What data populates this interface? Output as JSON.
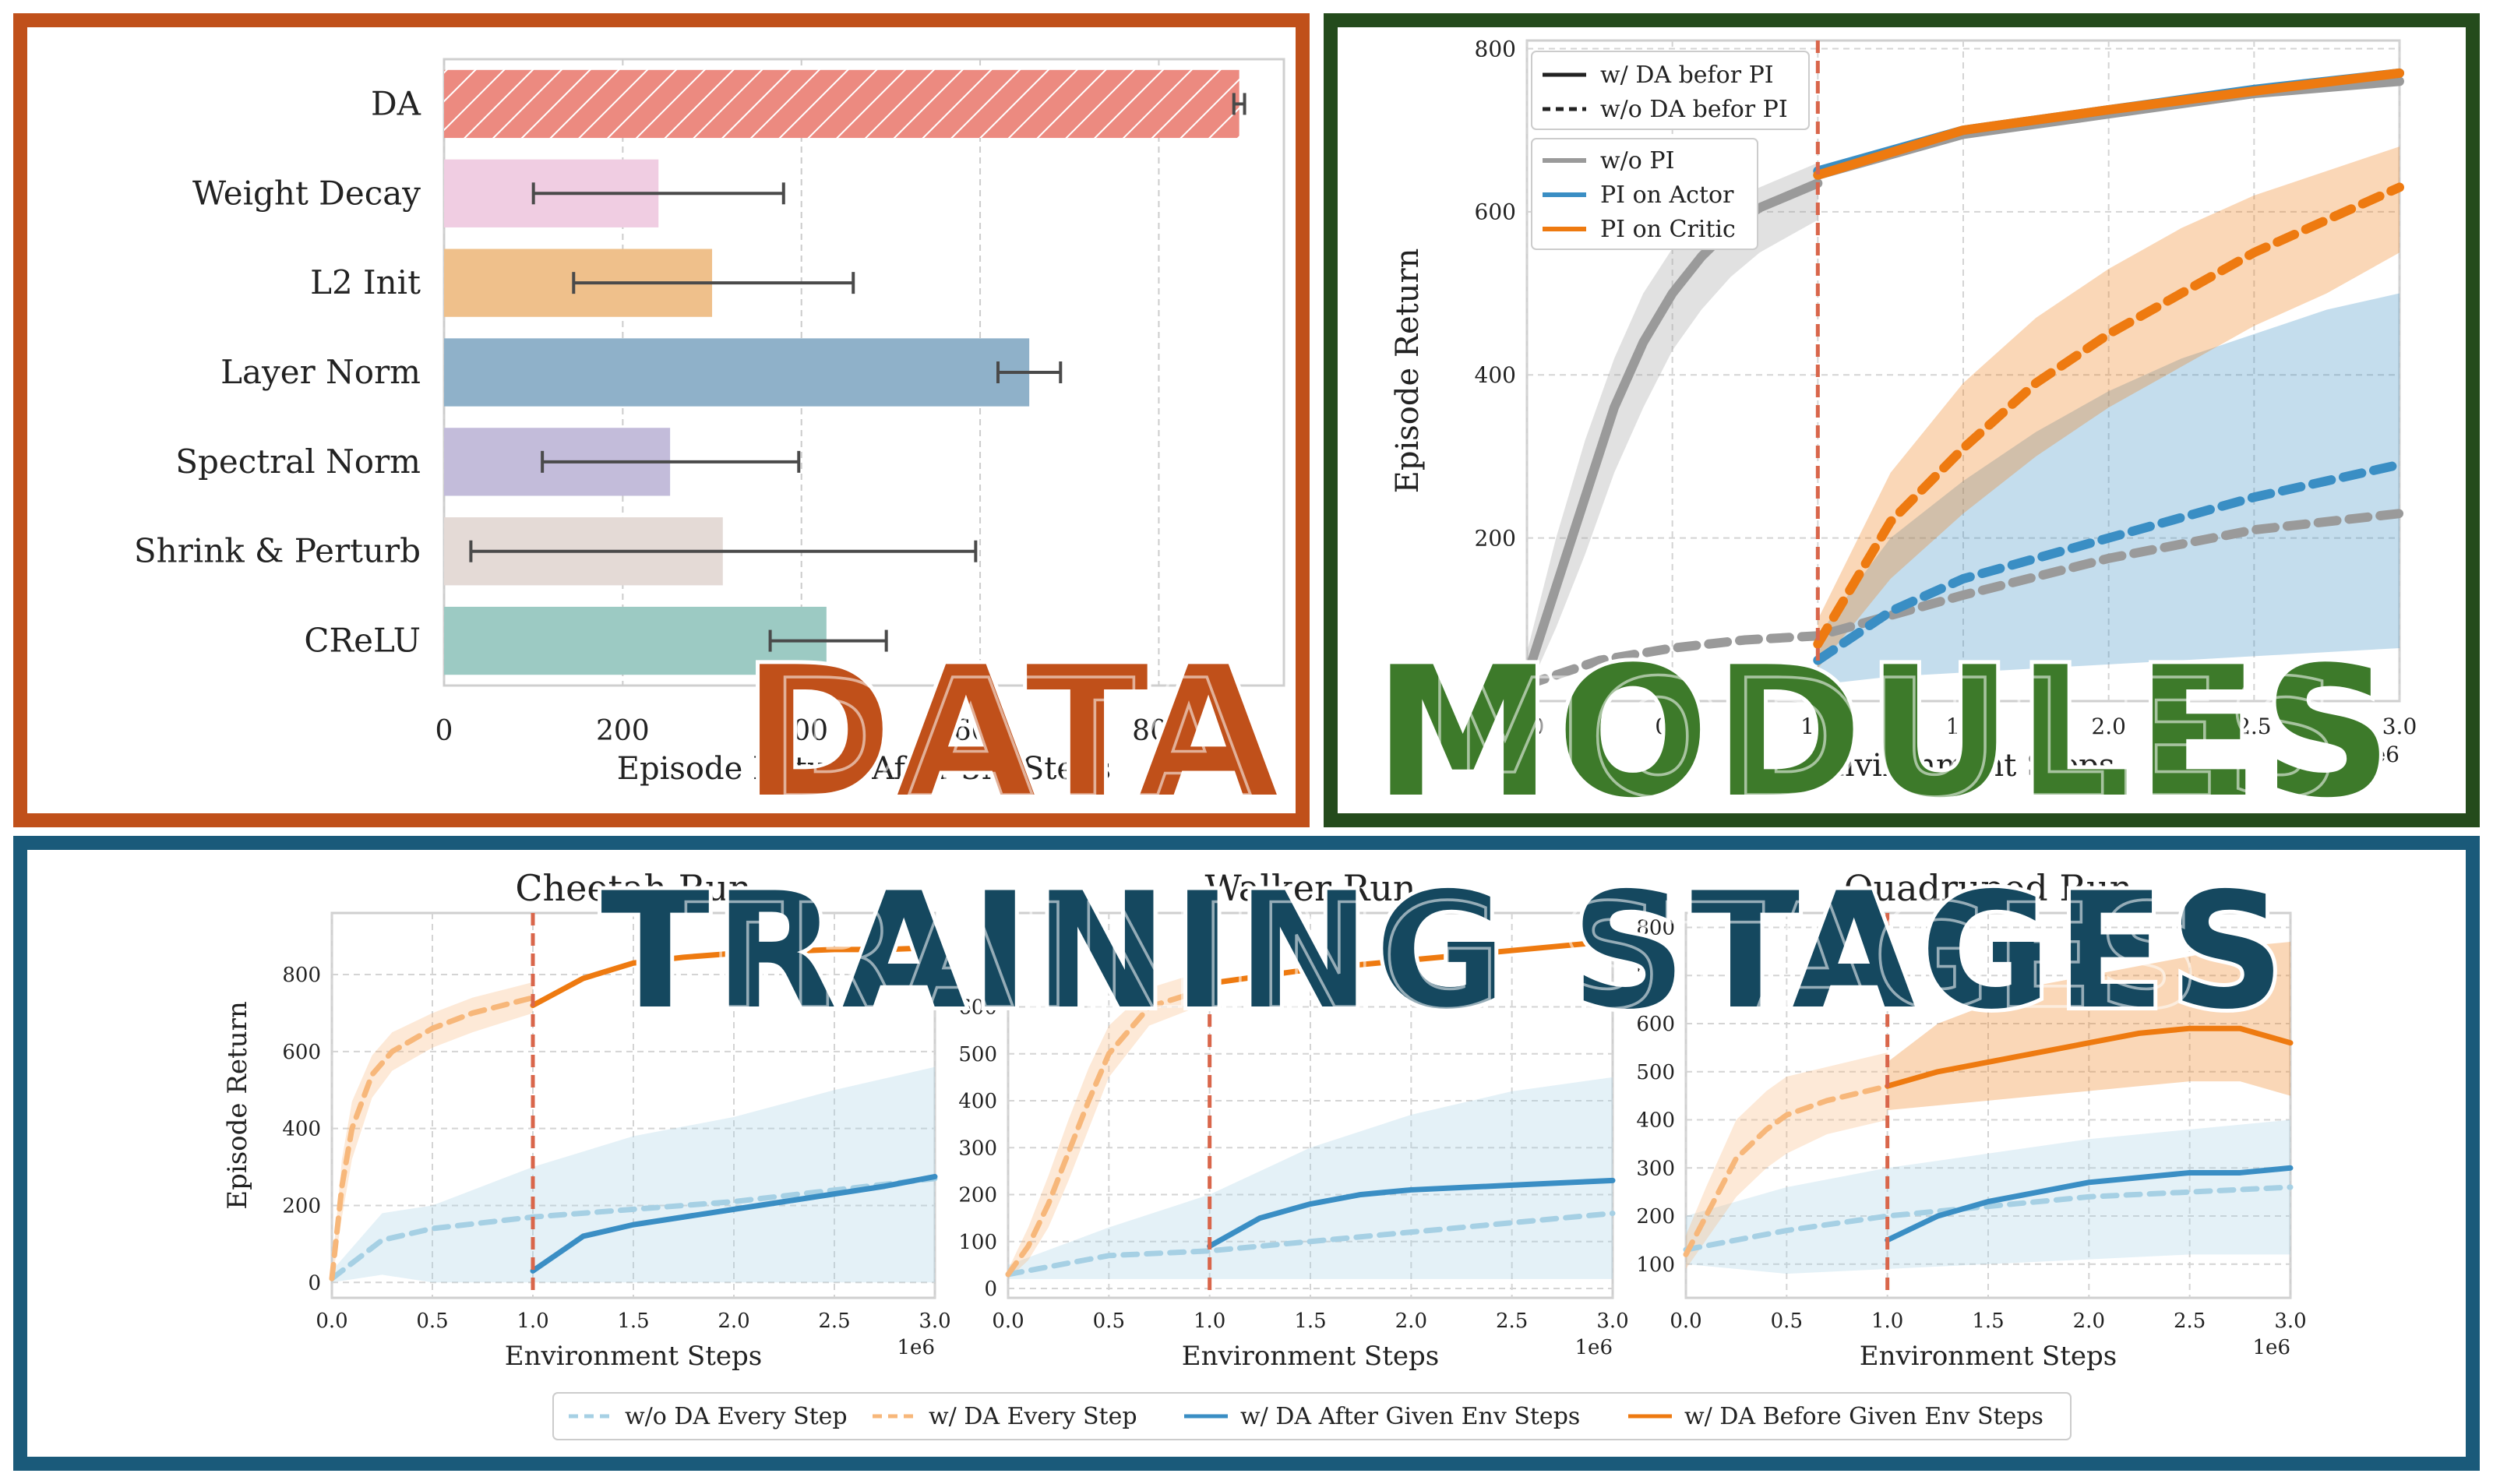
{
  "colors": {
    "data_frame": "#c0501a",
    "modules_frame": "#244b1c",
    "stages_frame": "#1a5a7a",
    "data_title": "#c0501a",
    "modules_title": "#3d7a2a",
    "stages_title": "#15485f",
    "orange": "#ee7a10",
    "light_orange": "#f7b77a",
    "blue": "#3a8ec4",
    "light_blue": "#a6d0e4",
    "gray": "#9a9a9a",
    "dashed_red": "#d9664b"
  },
  "section_titles": {
    "data": "DATA",
    "modules": "MODULES",
    "stages": "TRAINING STAGES"
  },
  "chart_data": [
    {
      "type": "bar",
      "orientation": "horizontal",
      "categories": [
        "DA",
        "Weight Decay",
        "L2 Init",
        "Layer Norm",
        "Spectral Norm",
        "Shrink & Perturb",
        "CReLU"
      ],
      "values": [
        890,
        240,
        300,
        655,
        253,
        312,
        428
      ],
      "error_low": [
        884,
        100,
        145,
        620,
        110,
        30,
        365
      ],
      "error_high": [
        896,
        380,
        458,
        690,
        397,
        595,
        495
      ],
      "bar_colors": [
        "#ec8a80",
        "#f0cde2",
        "#efc08b",
        "#8fb1c9",
        "#c3bcda",
        "#e4dad6",
        "#9ccac3"
      ],
      "xlabel": "Episode Return After 3M Steps",
      "xticks": [
        "0",
        "200",
        "400",
        "600",
        "800"
      ],
      "xlim": [
        0,
        940
      ],
      "grid": true
    },
    {
      "type": "line",
      "xlabel": "Environment Steps",
      "ylabel": "Episode Return",
      "xticks": [
        "0.0",
        "0.5",
        "1.0",
        "1.5",
        "2.0",
        "2.5",
        "3.0"
      ],
      "yticks": [
        "200",
        "400",
        "600",
        "800"
      ],
      "xlim": [
        0,
        3.0
      ],
      "ylim": [
        0,
        810
      ],
      "x_scale_note": "1e6",
      "vline_x": 1.0,
      "legend_linestyle": [
        {
          "name": "w/ DA befor PI",
          "style": "solid"
        },
        {
          "name": "w/o DA befor PI",
          "style": "dashed"
        }
      ],
      "legend_color": [
        {
          "name": "w/o PI",
          "color": "#9a9a9a"
        },
        {
          "name": "PI on Actor",
          "color": "#3a8ec4"
        },
        {
          "name": "PI on Critic",
          "color": "#ee7a10"
        }
      ],
      "series": [
        {
          "name": "w/o PI",
          "style": "solid",
          "color": "#9a9a9a",
          "x": [
            0.0,
            0.1,
            0.2,
            0.3,
            0.4,
            0.5,
            0.6,
            0.7,
            0.8,
            0.9,
            1.0
          ],
          "y": [
            30,
            140,
            250,
            360,
            440,
            500,
            545,
            580,
            605,
            620,
            635
          ],
          "band_low": [
            10,
            90,
            180,
            280,
            360,
            430,
            480,
            520,
            550,
            570,
            590
          ],
          "band_high": [
            60,
            200,
            320,
            420,
            500,
            555,
            590,
            615,
            630,
            645,
            660
          ]
        },
        {
          "name": "w/ DA befor PI (w/o PI)",
          "style": "solid",
          "color": "#9a9a9a",
          "x": [
            1.0,
            1.5,
            2.0,
            2.5,
            3.0
          ],
          "y": [
            645,
            695,
            720,
            745,
            760
          ]
        },
        {
          "name": "w/ DA befor PI (PI on Actor)",
          "style": "solid",
          "color": "#3a8ec4",
          "x": [
            1.0,
            1.5,
            2.0,
            2.5,
            3.0
          ],
          "y": [
            650,
            700,
            725,
            750,
            770
          ]
        },
        {
          "name": "w/ DA befor PI (PI on Critic)",
          "style": "solid",
          "color": "#ee7a10",
          "x": [
            1.0,
            1.5,
            2.0,
            2.5,
            3.0
          ],
          "y": [
            645,
            700,
            725,
            748,
            770
          ]
        },
        {
          "name": "w/o DA befor PI (w/o PI)",
          "style": "dashed",
          "color": "#9a9a9a",
          "x": [
            0.0,
            0.25,
            0.5,
            0.75,
            1.0,
            1.5,
            2.0,
            2.5,
            3.0
          ],
          "y": [
            20,
            50,
            65,
            75,
            80,
            130,
            175,
            210,
            230
          ]
        },
        {
          "name": "w/o DA befor PI (PI on Actor)",
          "style": "dashed",
          "color": "#3a8ec4",
          "x": [
            1.0,
            1.25,
            1.5,
            1.75,
            2.0,
            2.25,
            2.5,
            2.75,
            3.0
          ],
          "y": [
            50,
            110,
            150,
            175,
            200,
            225,
            250,
            270,
            290
          ],
          "band_low": [
            20,
            30,
            35,
            40,
            45,
            50,
            55,
            60,
            65
          ],
          "band_high": [
            80,
            200,
            270,
            330,
            380,
            420,
            450,
            480,
            500
          ]
        },
        {
          "name": "w/o DA befor PI (PI on Critic)",
          "style": "dashed",
          "color": "#ee7a10",
          "x": [
            1.0,
            1.25,
            1.5,
            1.75,
            2.0,
            2.25,
            2.5,
            2.75,
            3.0
          ],
          "y": [
            70,
            220,
            310,
            390,
            450,
            500,
            550,
            590,
            630
          ],
          "band_low": [
            40,
            150,
            230,
            300,
            360,
            410,
            460,
            500,
            550
          ],
          "band_high": [
            100,
            280,
            390,
            470,
            530,
            580,
            620,
            650,
            680
          ]
        }
      ]
    },
    {
      "type": "line",
      "title": "Cheetah Run",
      "xlabel": "Environment Steps",
      "ylabel": "Episode Return",
      "xticks": [
        "0.0",
        "0.5",
        "1.0",
        "1.5",
        "2.0",
        "2.5",
        "3.0"
      ],
      "yticks": [
        "0",
        "200",
        "400",
        "600",
        "800"
      ],
      "xlim": [
        0,
        3.0
      ],
      "ylim": [
        -40,
        960
      ],
      "x_scale_note": "1e6",
      "vline_x": 1.0,
      "series": [
        {
          "name": "w/o DA Every Step",
          "x": [
            0.0,
            0.25,
            0.5,
            1.0,
            1.5,
            2.0,
            2.5,
            3.0
          ],
          "y": [
            10,
            110,
            140,
            170,
            190,
            210,
            240,
            270
          ],
          "band_low": [
            0,
            20,
            0,
            0,
            0,
            0,
            0,
            0
          ],
          "band_high": [
            30,
            180,
            200,
            300,
            380,
            430,
            500,
            560
          ]
        },
        {
          "name": "w/ DA Every Step",
          "x": [
            0.0,
            0.05,
            0.1,
            0.2,
            0.3,
            0.5,
            0.7,
            1.0
          ],
          "y": [
            10,
            250,
            400,
            540,
            600,
            660,
            700,
            740
          ],
          "band_low": [
            0,
            170,
            320,
            480,
            550,
            610,
            650,
            700
          ],
          "band_high": [
            30,
            320,
            470,
            590,
            650,
            700,
            740,
            780
          ]
        },
        {
          "name": "w/ DA After Given Env Steps",
          "x": [
            1.0,
            1.25,
            1.5,
            1.75,
            2.0,
            2.25,
            2.5,
            2.75,
            3.0
          ],
          "y": [
            30,
            120,
            150,
            170,
            190,
            210,
            230,
            250,
            275
          ]
        },
        {
          "name": "w/ DA Before Given Env Steps",
          "x": [
            1.0,
            1.25,
            1.5,
            1.75,
            2.0,
            2.25,
            2.5,
            2.75,
            3.0
          ],
          "y": [
            720,
            790,
            830,
            845,
            855,
            860,
            865,
            865,
            870
          ]
        }
      ]
    },
    {
      "type": "line",
      "title": "Walker Run",
      "xlabel": "Environment Steps",
      "xticks": [
        "0.0",
        "0.5",
        "1.0",
        "1.5",
        "2.0",
        "2.5",
        "3.0"
      ],
      "yticks": [
        "0",
        "100",
        "200",
        "300",
        "400",
        "500",
        "600"
      ],
      "xlim": [
        0,
        3.0
      ],
      "ylim": [
        -20,
        800
      ],
      "x_scale_note": "1e6",
      "vline_x": 1.0,
      "series": [
        {
          "name": "w/o DA Every Step",
          "x": [
            0.0,
            0.5,
            1.0,
            1.5,
            2.0,
            2.5,
            3.0
          ],
          "y": [
            30,
            70,
            80,
            100,
            120,
            140,
            160
          ],
          "band_low": [
            20,
            20,
            20,
            20,
            20,
            20,
            20
          ],
          "band_high": [
            50,
            130,
            200,
            300,
            370,
            420,
            450
          ]
        },
        {
          "name": "w/ DA Every Step",
          "x": [
            0.0,
            0.1,
            0.2,
            0.3,
            0.4,
            0.5,
            0.7,
            1.0
          ],
          "y": [
            30,
            90,
            180,
            290,
            400,
            500,
            600,
            640
          ],
          "band_low": [
            20,
            60,
            130,
            230,
            340,
            450,
            560,
            610
          ],
          "band_high": [
            40,
            130,
            240,
            360,
            470,
            560,
            640,
            680
          ]
        },
        {
          "name": "w/ DA After Given Env Steps",
          "x": [
            1.0,
            1.25,
            1.5,
            1.75,
            2.0,
            2.25,
            2.5,
            2.75,
            3.0
          ],
          "y": [
            90,
            150,
            180,
            200,
            210,
            215,
            220,
            225,
            230
          ]
        },
        {
          "name": "w/ DA Before Given Env Steps",
          "x": [
            1.0,
            1.5,
            2.0,
            2.5,
            3.0
          ],
          "y": [
            650,
            680,
            700,
            720,
            740
          ]
        }
      ]
    },
    {
      "type": "line",
      "title": "Quadruped Run",
      "xlabel": "Environment Steps",
      "xticks": [
        "0.0",
        "0.5",
        "1.0",
        "1.5",
        "2.0",
        "2.5",
        "3.0"
      ],
      "yticks": [
        "100",
        "200",
        "300",
        "400",
        "500",
        "600",
        "700",
        "800"
      ],
      "xlim": [
        0,
        3.0
      ],
      "ylim": [
        30,
        830
      ],
      "x_scale_note": "1e6",
      "vline_x": 1.0,
      "series": [
        {
          "name": "w/o DA Every Step",
          "x": [
            0.0,
            0.5,
            1.0,
            1.5,
            2.0,
            2.5,
            3.0
          ],
          "y": [
            130,
            170,
            200,
            220,
            240,
            250,
            260
          ],
          "band_low": [
            100,
            80,
            90,
            100,
            110,
            120,
            120
          ],
          "band_high": [
            200,
            260,
            300,
            330,
            360,
            380,
            400
          ]
        },
        {
          "name": "w/ DA Every Step",
          "x": [
            0.0,
            0.1,
            0.25,
            0.4,
            0.5,
            0.7,
            1.0
          ],
          "y": [
            120,
            200,
            320,
            380,
            410,
            440,
            470
          ],
          "band_low": [
            90,
            150,
            240,
            300,
            330,
            370,
            400
          ],
          "band_high": [
            160,
            260,
            400,
            460,
            490,
            510,
            540
          ]
        },
        {
          "name": "w/ DA After Given Env Steps",
          "x": [
            1.0,
            1.25,
            1.5,
            1.75,
            2.0,
            2.25,
            2.5,
            2.75,
            3.0
          ],
          "y": [
            150,
            200,
            230,
            250,
            270,
            280,
            290,
            290,
            300
          ]
        },
        {
          "name": "w/ DA Before Given Env Steps",
          "x": [
            1.0,
            1.25,
            1.5,
            1.75,
            2.0,
            2.25,
            2.5,
            2.75,
            3.0
          ],
          "y": [
            470,
            500,
            520,
            540,
            560,
            580,
            590,
            590,
            560
          ],
          "band_low": [
            420,
            430,
            440,
            450,
            460,
            470,
            480,
            480,
            450
          ],
          "band_high": [
            520,
            600,
            640,
            680,
            700,
            720,
            740,
            760,
            770
          ]
        }
      ]
    }
  ],
  "bottom_legend": [
    {
      "name": "w/o DA Every Step",
      "style": "dashed",
      "color": "#a6d0e4"
    },
    {
      "name": "w/ DA Every Step",
      "style": "dashed",
      "color": "#f7b77a"
    },
    {
      "name": "w/ DA After Given Env Steps",
      "style": "solid",
      "color": "#3a8ec4"
    },
    {
      "name": "w/ DA Before Given Env Steps",
      "style": "solid",
      "color": "#ee7a10"
    }
  ]
}
